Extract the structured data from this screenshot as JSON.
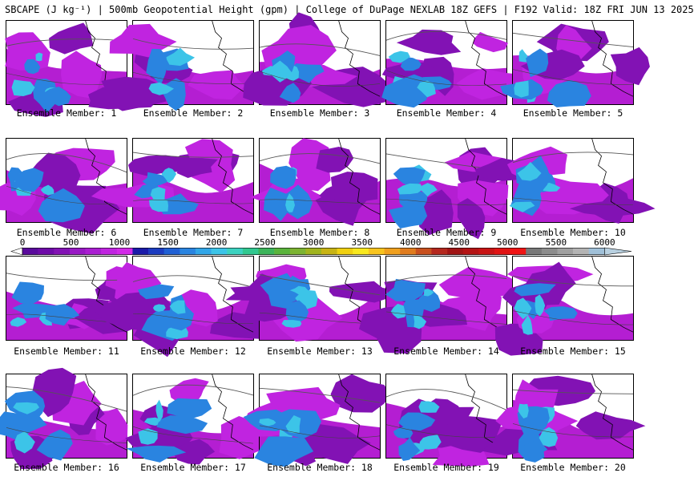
{
  "title": "SBCAPE (J kg⁻¹) | 500mb Geopotential Height (gpm) | College of DuPage NEXLAB 18Z GEFS | F192 Valid: 18Z FRI JUN 13 2025",
  "member_label_prefix": "Ensemble Member: ",
  "members": [
    {
      "id": "1",
      "label": "Ensemble Member: 1"
    },
    {
      "id": "2",
      "label": "Ensemble Member: 2"
    },
    {
      "id": "3",
      "label": "Ensemble Member: 3"
    },
    {
      "id": "4",
      "label": "Ensemble Member: 4"
    },
    {
      "id": "5",
      "label": "Ensemble Member: 5"
    },
    {
      "id": "6",
      "label": "Ensemble Member: 6"
    },
    {
      "id": "7",
      "label": "Ensemble Member: 7"
    },
    {
      "id": "8",
      "label": "Ensemble Member: 8"
    },
    {
      "id": "9",
      "label": "Ensemble Member: 9"
    },
    {
      "id": "10",
      "label": "Ensemble Member: 10"
    },
    {
      "id": "11",
      "label": "Ensemble Member: 11"
    },
    {
      "id": "12",
      "label": "Ensemble Member: 12"
    },
    {
      "id": "13",
      "label": "Ensemble Member: 13"
    },
    {
      "id": "14",
      "label": "Ensemble Member: 14"
    },
    {
      "id": "15",
      "label": "Ensemble Member: 15"
    },
    {
      "id": "16",
      "label": "Ensemble Member: 16"
    },
    {
      "id": "17",
      "label": "Ensemble Member: 17"
    },
    {
      "id": "18",
      "label": "Ensemble Member: 18"
    },
    {
      "id": "19",
      "label": "Ensemble Member: 19"
    },
    {
      "id": "20",
      "label": "Ensemble Member: 20"
    }
  ],
  "colorbar": {
    "ticks": [
      "0",
      "500",
      "1000",
      "1500",
      "2000",
      "2500",
      "3000",
      "3500",
      "4000",
      "4500",
      "5000",
      "5500",
      "6000"
    ],
    "colors": [
      "#ffffff",
      "#5a0a9c",
      "#6e0aa8",
      "#8212b4",
      "#9818c4",
      "#aa1ed2",
      "#c024e0",
      "#d22ae8",
      "#1a1aa8",
      "#1c3cc0",
      "#2060d4",
      "#2a84e0",
      "#32a6e8",
      "#3cc4e8",
      "#3cd2c0",
      "#32c890",
      "#3cb45a",
      "#5ab43c",
      "#7cb432",
      "#a0b41e",
      "#c8b414",
      "#f0d010",
      "#f8e81e",
      "#f8c41e",
      "#f0a01e",
      "#e07c1e",
      "#c8501e",
      "#b4281e",
      "#a01414",
      "#b41414",
      "#c81414",
      "#e01414",
      "#f01414",
      "#787878",
      "#8c8c8c",
      "#a0a0a0",
      "#b4b4b4",
      "#a0c0d8",
      "#b8d0e0"
    ]
  }
}
